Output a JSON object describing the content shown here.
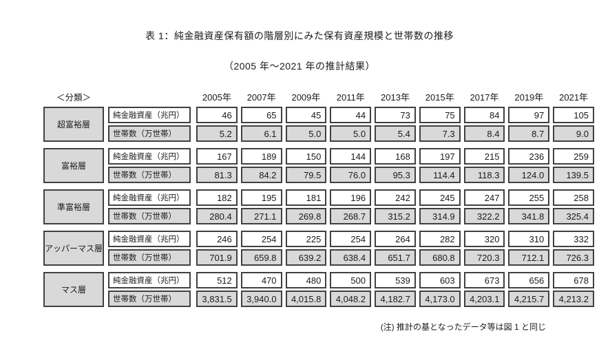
{
  "title": "表 1：純金融資産保有額の階層別にみた保有資産規模と世帯数の推移",
  "subtitle": "（2005 年～2021 年の推計結果）",
  "classification_label": "＜分類＞",
  "note": "(注) 推計の基となったデータ等は図 1 と同じ",
  "colors": {
    "background": "#ffffff",
    "text": "#1a1a1a",
    "cell_border": "#404040",
    "shaded_fill": "#d9d9d9"
  },
  "chart_data": {
    "type": "table",
    "years": [
      "2005年",
      "2007年",
      "2009年",
      "2011年",
      "2013年",
      "2015年",
      "2017年",
      "2019年",
      "2021年"
    ],
    "row_labels": {
      "assets": "純金融資産（兆円）",
      "households": "世帯数（万世帯）"
    },
    "groups": [
      {
        "category": "超富裕層",
        "assets": [
          "46",
          "65",
          "45",
          "44",
          "73",
          "75",
          "84",
          "97",
          "105"
        ],
        "households": [
          "5.2",
          "6.1",
          "5.0",
          "5.0",
          "5.4",
          "7.3",
          "8.4",
          "8.7",
          "9.0"
        ]
      },
      {
        "category": "富裕層",
        "assets": [
          "167",
          "189",
          "150",
          "144",
          "168",
          "197",
          "215",
          "236",
          "259"
        ],
        "households": [
          "81.3",
          "84.2",
          "79.5",
          "76.0",
          "95.3",
          "114.4",
          "118.3",
          "124.0",
          "139.5"
        ]
      },
      {
        "category": "準富裕層",
        "assets": [
          "182",
          "195",
          "181",
          "196",
          "242",
          "245",
          "247",
          "255",
          "258"
        ],
        "households": [
          "280.4",
          "271.1",
          "269.8",
          "268.7",
          "315.2",
          "314.9",
          "322.2",
          "341.8",
          "325.4"
        ]
      },
      {
        "category": "アッパーマス層",
        "assets": [
          "246",
          "254",
          "225",
          "254",
          "264",
          "282",
          "320",
          "310",
          "332"
        ],
        "households": [
          "701.9",
          "659.8",
          "639.2",
          "638.4",
          "651.7",
          "680.8",
          "720.3",
          "712.1",
          "726.3"
        ]
      },
      {
        "category": "マス層",
        "assets": [
          "512",
          "470",
          "480",
          "500",
          "539",
          "603",
          "673",
          "656",
          "678"
        ],
        "households": [
          "3,831.5",
          "3,940.0",
          "4,015.8",
          "4,048.2",
          "4,182.7",
          "4,173.0",
          "4,203.1",
          "4,215.7",
          "4,213.2"
        ]
      }
    ]
  }
}
